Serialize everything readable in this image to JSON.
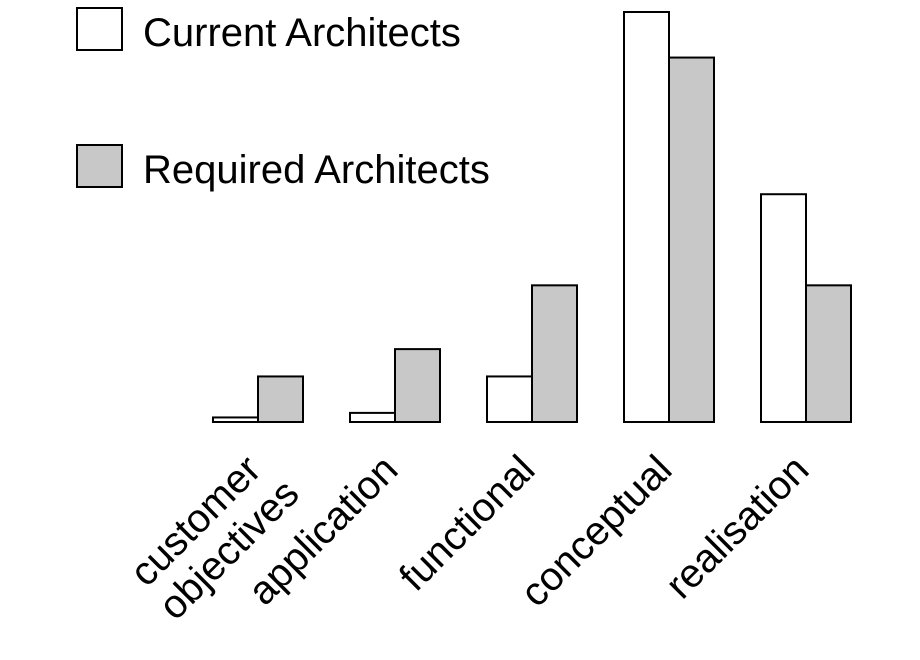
{
  "chart_data": {
    "type": "bar",
    "title": "",
    "xlabel": "",
    "ylabel": "",
    "categories": [
      [
        "customer",
        "objectives"
      ],
      [
        "application"
      ],
      [
        "functional"
      ],
      [
        "conceptual"
      ],
      [
        "realisation"
      ]
    ],
    "series": [
      {
        "name": "Current Architects",
        "color": "#ffffff",
        "values": [
          0.5,
          1,
          5,
          45,
          25
        ]
      },
      {
        "name": "Required Architects",
        "color": "#c8c8c8",
        "values": [
          5,
          8,
          15,
          40,
          15
        ]
      }
    ],
    "ylim": [
      0,
      45
    ],
    "grid": false,
    "axes_visible": false,
    "legend_position": "top-left"
  }
}
